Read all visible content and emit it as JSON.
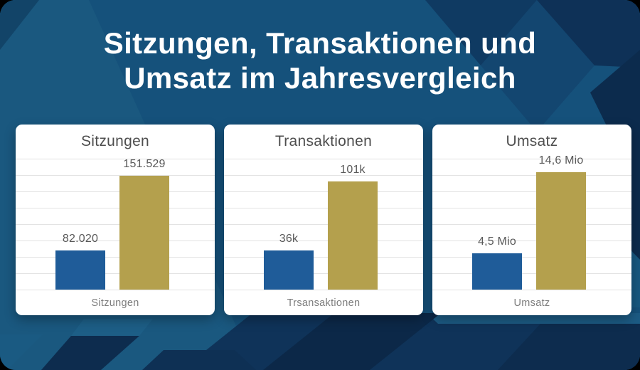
{
  "header": {
    "title_line1": "Sitzungen, Transaktionen und",
    "title_line2": "Umsatz im Jahresvergleich"
  },
  "theme": {
    "background_base": "#15517B",
    "bar_blue": "#1F5C99",
    "bar_gold": "#B4A04D",
    "card_background": "#FFFFFF",
    "gridline": "#E3E3E3",
    "main_title_color": "#FFFFFF",
    "card_title_color": "#4E4E4E",
    "value_label_color": "#595959",
    "category_label_color": "#7D7D7D"
  },
  "chart_data": [
    {
      "type": "bar",
      "title": "Sitzungen",
      "categories": [
        "Sitzungen"
      ],
      "xlabel": "Sitzungen",
      "grid": true,
      "legend": false,
      "series": [
        {
          "name": "series-1",
          "values": [
            82020
          ],
          "label": "82.020",
          "color_key": "bar_blue",
          "height_frac": 0.3
        },
        {
          "name": "series-2",
          "values": [
            151529
          ],
          "label": "151.529",
          "color_key": "bar_gold",
          "height_frac": 0.87
        }
      ]
    },
    {
      "type": "bar",
      "title": "Transaktionen",
      "categories": [
        "Trsansaktionen"
      ],
      "xlabel": "Trsansaktionen",
      "grid": true,
      "legend": false,
      "series": [
        {
          "name": "series-1",
          "values": [
            36000
          ],
          "label": "36k",
          "color_key": "bar_blue",
          "height_frac": 0.3
        },
        {
          "name": "series-2",
          "values": [
            101000
          ],
          "label": "101k",
          "color_key": "bar_gold",
          "height_frac": 0.826
        }
      ]
    },
    {
      "type": "bar",
      "title": "Umsatz",
      "categories": [
        "Umsatz"
      ],
      "xlabel": "Umsatz",
      "grid": true,
      "legend": false,
      "series": [
        {
          "name": "series-1",
          "values": [
            4500000
          ],
          "label": "4,5 Mio",
          "color_key": "bar_blue",
          "height_frac": 0.277
        },
        {
          "name": "series-2",
          "values": [
            14600000
          ],
          "label": "14,6 Mio",
          "color_key": "bar_gold",
          "height_frac": 0.897
        }
      ]
    }
  ]
}
